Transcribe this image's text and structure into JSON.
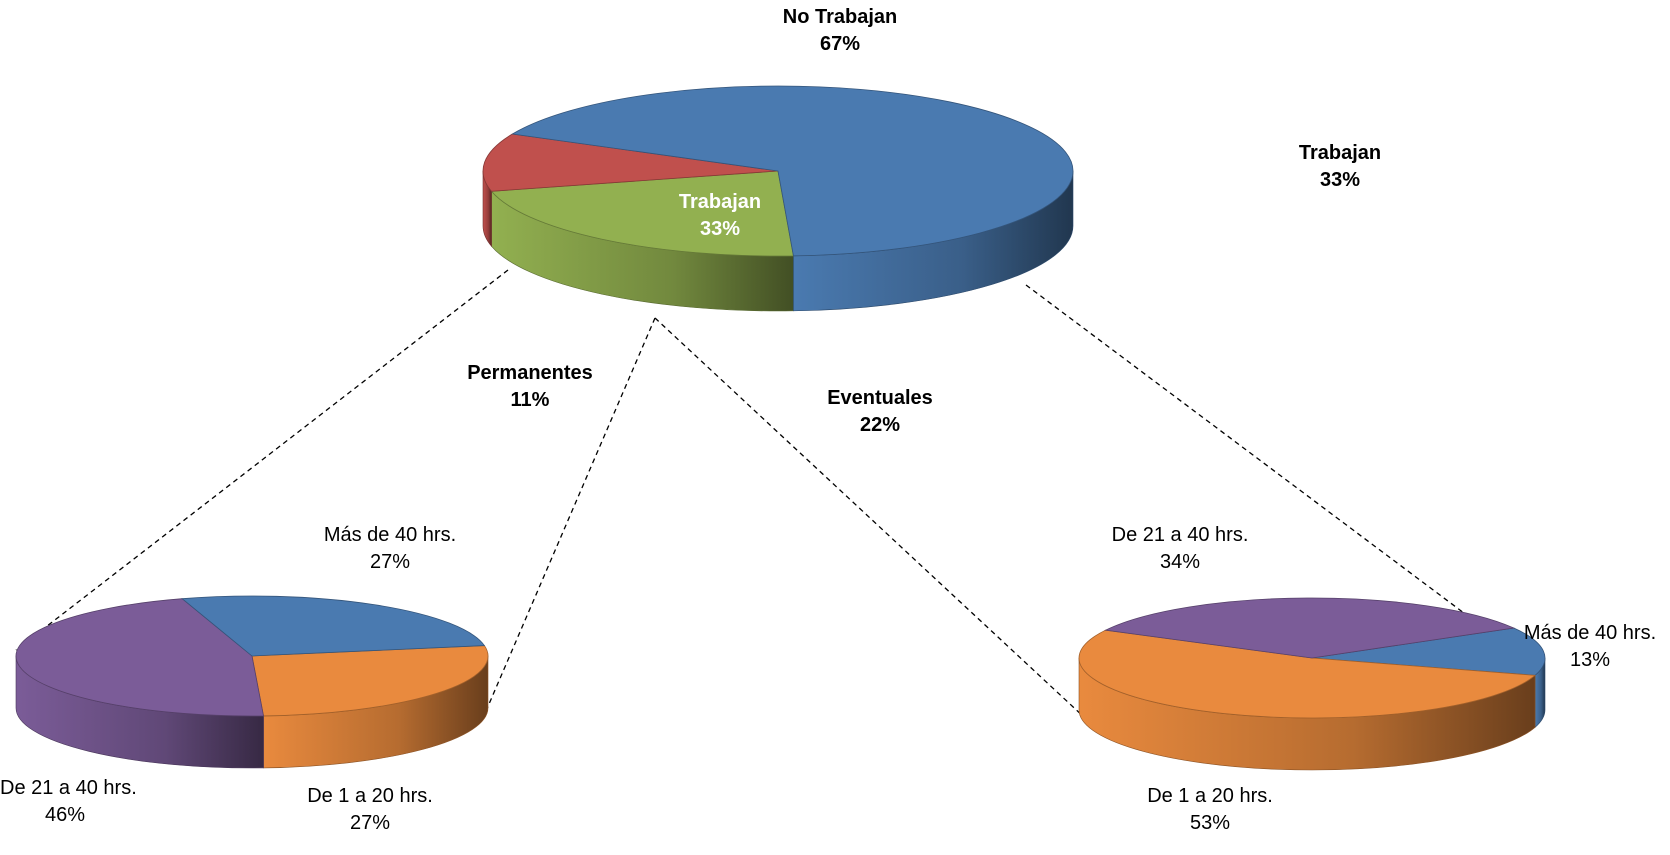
{
  "chart_data": [
    {
      "type": "pie",
      "categories": [
        "No Trabajan",
        "Trabajan"
      ],
      "values": [
        67,
        33
      ],
      "labels": [
        {
          "name": "No Trabajan",
          "value": "67%"
        },
        {
          "name": "Trabajan",
          "value": "33%"
        }
      ],
      "breakdown_of": "Trabajan",
      "breakdown": [
        {
          "name": "Permanentes",
          "value": 11,
          "value_label": "11%"
        },
        {
          "name": "Eventuales",
          "value": 22,
          "value_label": "22%"
        }
      ],
      "inner_label": {
        "name": "Trabajan",
        "value": "33%"
      }
    },
    {
      "type": "pie",
      "parent": "Permanentes",
      "categories": [
        "Más de 40 hrs.",
        "De 1 a 20 hrs.",
        "De 21 a 40 hrs."
      ],
      "values": [
        27,
        27,
        46
      ],
      "labels": [
        {
          "name": "Más de 40 hrs.",
          "value": "27%"
        },
        {
          "name": "De 1 a 20 hrs.",
          "value": "27%"
        },
        {
          "name": "De 21 a 40 hrs.",
          "value": "46%"
        }
      ]
    },
    {
      "type": "pie",
      "parent": "Eventuales",
      "categories": [
        "Más de 40 hrs.",
        "De 1 a 20 hrs.",
        "De 21 a 40 hrs."
      ],
      "values": [
        13,
        53,
        34
      ],
      "labels": [
        {
          "name": "Más de 40 hrs.",
          "value": "13%"
        },
        {
          "name": "De 1 a 20 hrs.",
          "value": "53%"
        },
        {
          "name": "De 21 a 40 hrs.",
          "value": "34%"
        }
      ]
    }
  ],
  "colors": {
    "no_trabajan": "#4a7ab0",
    "permanentes": "#c0504d",
    "eventuales": "#92b050",
    "mas_40": "#4a7ab0",
    "de_1_20": "#e98a3e",
    "de_21_40": "#7b5c98"
  }
}
